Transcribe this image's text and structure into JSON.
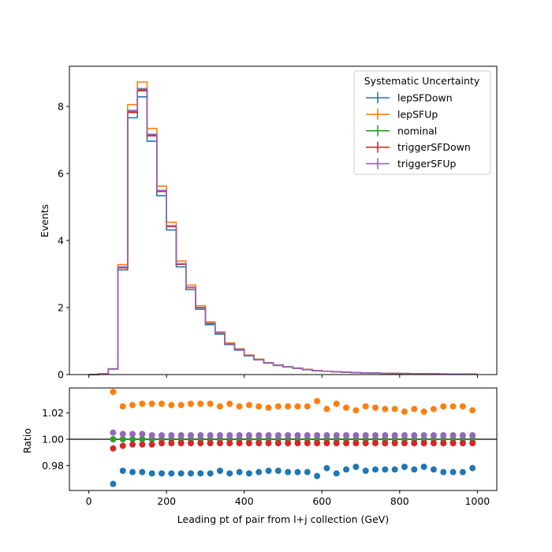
{
  "chart_data": [
    {
      "type": "line",
      "drawstyle": "steps",
      "xlabel": "",
      "ylabel": "Events",
      "xlim": [
        -50,
        1050
      ],
      "ylim": [
        0,
        9.2
      ],
      "x_ticks": [
        "0",
        "200",
        "400",
        "600",
        "800",
        "1000"
      ],
      "y_ticks": [
        "0",
        "2",
        "4",
        "6",
        "8"
      ],
      "x_tick_values": [
        0,
        200,
        400,
        600,
        800,
        1000
      ],
      "y_tick_values": [
        0,
        2,
        4,
        6,
        8
      ],
      "bin_edges": [
        0,
        25,
        50,
        75,
        100,
        125,
        150,
        175,
        200,
        225,
        250,
        275,
        300,
        325,
        350,
        375,
        400,
        425,
        450,
        475,
        500,
        525,
        550,
        575,
        600,
        625,
        650,
        675,
        700,
        725,
        750,
        775,
        800,
        825,
        850,
        875,
        900,
        925,
        950,
        975,
        1000
      ],
      "legend": {
        "title": "Systematic Uncertainty",
        "placement": "upper right",
        "entries": [
          "lepSFDown",
          "lepSFUp",
          "nominal",
          "triggerSFDown",
          "triggerSFUp"
        ]
      },
      "nominal_values": [
        0.0,
        0.02,
        0.17,
        3.2,
        7.85,
        8.5,
        7.15,
        5.48,
        4.43,
        3.3,
        2.6,
        2.0,
        1.53,
        1.24,
        0.92,
        0.75,
        0.57,
        0.45,
        0.35,
        0.28,
        0.23,
        0.19,
        0.15,
        0.12,
        0.1,
        0.085,
        0.07,
        0.06,
        0.05,
        0.045,
        0.04,
        0.035,
        0.03,
        0.027,
        0.024,
        0.021,
        0.018,
        0.016,
        0.014,
        0.012
      ],
      "series": [
        {
          "name": "lepSFDown",
          "color": "#1f77b4",
          "scale": [
            0.975,
            0.97,
            0.966,
            0.976,
            0.976,
            0.975,
            0.974,
            0.974,
            0.974,
            0.974,
            0.974,
            0.974,
            0.974,
            0.974,
            0.974,
            0.975,
            0.975,
            0.975,
            0.975,
            0.975,
            0.975,
            0.975,
            0.975,
            0.975,
            0.975,
            0.975,
            0.975,
            0.975,
            0.975,
            0.975,
            0.975,
            0.975,
            0.975,
            0.975,
            0.975,
            0.975,
            0.975,
            0.975,
            0.975,
            0.975
          ]
        },
        {
          "name": "lepSFUp",
          "color": "#ff7f0e",
          "scale": [
            1.025,
            1.03,
            1.036,
            1.025,
            1.026,
            1.027,
            1.027,
            1.026,
            1.026,
            1.026,
            1.027,
            1.027,
            1.027,
            1.025,
            1.026,
            1.025,
            1.025,
            1.025,
            1.025,
            1.025,
            1.025,
            1.025,
            1.025,
            1.025,
            1.025,
            1.025,
            1.025,
            1.025,
            1.025,
            1.025,
            1.025,
            1.025,
            1.025,
            1.025,
            1.025,
            1.025,
            1.025,
            1.025,
            1.025,
            1.025
          ]
        },
        {
          "name": "nominal",
          "color": "#2ca02c",
          "scale": [
            1,
            1,
            1,
            1,
            1,
            1,
            1,
            1,
            1,
            1,
            1,
            1,
            1,
            1,
            1,
            1,
            1,
            1,
            1,
            1,
            1,
            1,
            1,
            1,
            1,
            1,
            1,
            1,
            1,
            1,
            1,
            1,
            1,
            1,
            1,
            1,
            1,
            1,
            1,
            1
          ]
        },
        {
          "name": "triggerSFDown",
          "color": "#d62728",
          "scale": [
            0.997,
            0.997,
            0.993,
            0.995,
            0.996,
            0.996,
            0.996,
            0.997,
            0.997,
            0.997,
            0.997,
            0.997,
            0.997,
            0.997,
            0.997,
            0.997,
            0.997,
            0.997,
            0.997,
            0.997,
            0.997,
            0.997,
            0.997,
            0.997,
            0.997,
            0.997,
            0.997,
            0.997,
            0.997,
            0.997,
            0.997,
            0.997,
            0.997,
            0.997,
            0.997,
            0.997,
            0.997,
            0.997,
            0.997,
            0.997
          ]
        },
        {
          "name": "triggerSFUp",
          "color": "#9467bd",
          "scale": [
            1.003,
            1.003,
            1.005,
            1.004,
            1.004,
            1.004,
            1.003,
            1.003,
            1.003,
            1.003,
            1.003,
            1.003,
            1.003,
            1.003,
            1.003,
            1.003,
            1.003,
            1.003,
            1.003,
            1.003,
            1.003,
            1.003,
            1.003,
            1.003,
            1.003,
            1.003,
            1.003,
            1.003,
            1.003,
            1.003,
            1.003,
            1.003,
            1.003,
            1.003,
            1.003,
            1.003,
            1.003,
            1.003,
            1.003,
            1.003
          ]
        }
      ]
    },
    {
      "type": "scatter",
      "xlabel": "Leading pt of pair from l+j collection (GeV)",
      "ylabel": "Ratio",
      "xlim": [
        -50,
        1050
      ],
      "ylim": [
        0.961,
        1.039
      ],
      "x_ticks": [
        "0",
        "200",
        "400",
        "600",
        "800",
        "1000"
      ],
      "y_ticks": [
        "0.98",
        "1.00",
        "1.02"
      ],
      "x_tick_values": [
        0,
        200,
        400,
        600,
        800,
        1000
      ],
      "y_tick_values": [
        0.98,
        1.0,
        1.02
      ],
      "reference_line": 1.0,
      "x": [
        62.5,
        87.5,
        112.5,
        137.5,
        162.5,
        187.5,
        212.5,
        237.5,
        262.5,
        287.5,
        312.5,
        337.5,
        362.5,
        387.5,
        412.5,
        437.5,
        462.5,
        487.5,
        512.5,
        537.5,
        562.5,
        587.5,
        612.5,
        637.5,
        662.5,
        687.5,
        712.5,
        737.5,
        762.5,
        787.5,
        812.5,
        837.5,
        862.5,
        887.5,
        912.5,
        937.5,
        962.5,
        987.5
      ],
      "series": [
        {
          "name": "lepSFDown",
          "color": "#1f77b4",
          "values": [
            0.966,
            0.976,
            0.975,
            0.975,
            0.974,
            0.974,
            0.974,
            0.974,
            0.974,
            0.974,
            0.974,
            0.976,
            0.974,
            0.975,
            0.974,
            0.975,
            0.976,
            0.976,
            0.975,
            0.975,
            0.975,
            0.972,
            0.978,
            0.974,
            0.977,
            0.979,
            0.976,
            0.977,
            0.977,
            0.977,
            0.979,
            0.977,
            0.979,
            0.977,
            0.975,
            0.975,
            0.975,
            0.978
          ]
        },
        {
          "name": "lepSFUp",
          "color": "#ff7f0e",
          "values": [
            1.036,
            1.025,
            1.026,
            1.027,
            1.027,
            1.027,
            1.026,
            1.026,
            1.027,
            1.027,
            1.027,
            1.025,
            1.027,
            1.025,
            1.026,
            1.025,
            1.024,
            1.025,
            1.025,
            1.025,
            1.025,
            1.029,
            1.023,
            1.027,
            1.024,
            1.022,
            1.025,
            1.024,
            1.023,
            1.023,
            1.021,
            1.023,
            1.021,
            1.023,
            1.025,
            1.025,
            1.025,
            1.022
          ]
        },
        {
          "name": "nominal",
          "color": "#2ca02c",
          "values": [
            1,
            1,
            1,
            1,
            1,
            1,
            1,
            1,
            1,
            1,
            1,
            1,
            1,
            1,
            1,
            1,
            1,
            1,
            1,
            1,
            1,
            1,
            1,
            1,
            1,
            1,
            1,
            1,
            1,
            1,
            1,
            1,
            1,
            1,
            1,
            1,
            1,
            1
          ]
        },
        {
          "name": "triggerSFDown",
          "color": "#d62728",
          "values": [
            0.993,
            0.995,
            0.996,
            0.996,
            0.996,
            0.997,
            0.997,
            0.997,
            0.997,
            0.997,
            0.997,
            0.997,
            0.997,
            0.997,
            0.997,
            0.997,
            0.997,
            0.997,
            0.997,
            0.997,
            0.997,
            0.997,
            0.997,
            0.997,
            0.997,
            0.997,
            0.997,
            0.997,
            0.997,
            0.997,
            0.997,
            0.997,
            0.997,
            0.997,
            0.997,
            0.997,
            0.997,
            0.997
          ]
        },
        {
          "name": "triggerSFUp",
          "color": "#9467bd",
          "values": [
            1.005,
            1.004,
            1.004,
            1.004,
            1.003,
            1.003,
            1.003,
            1.003,
            1.003,
            1.003,
            1.003,
            1.003,
            1.003,
            1.003,
            1.003,
            1.003,
            1.003,
            1.003,
            1.003,
            1.003,
            1.003,
            1.003,
            1.003,
            1.003,
            1.003,
            1.003,
            1.003,
            1.003,
            1.003,
            1.003,
            1.003,
            1.003,
            1.003,
            1.003,
            1.003,
            1.003,
            1.003,
            1.003
          ]
        }
      ]
    }
  ]
}
